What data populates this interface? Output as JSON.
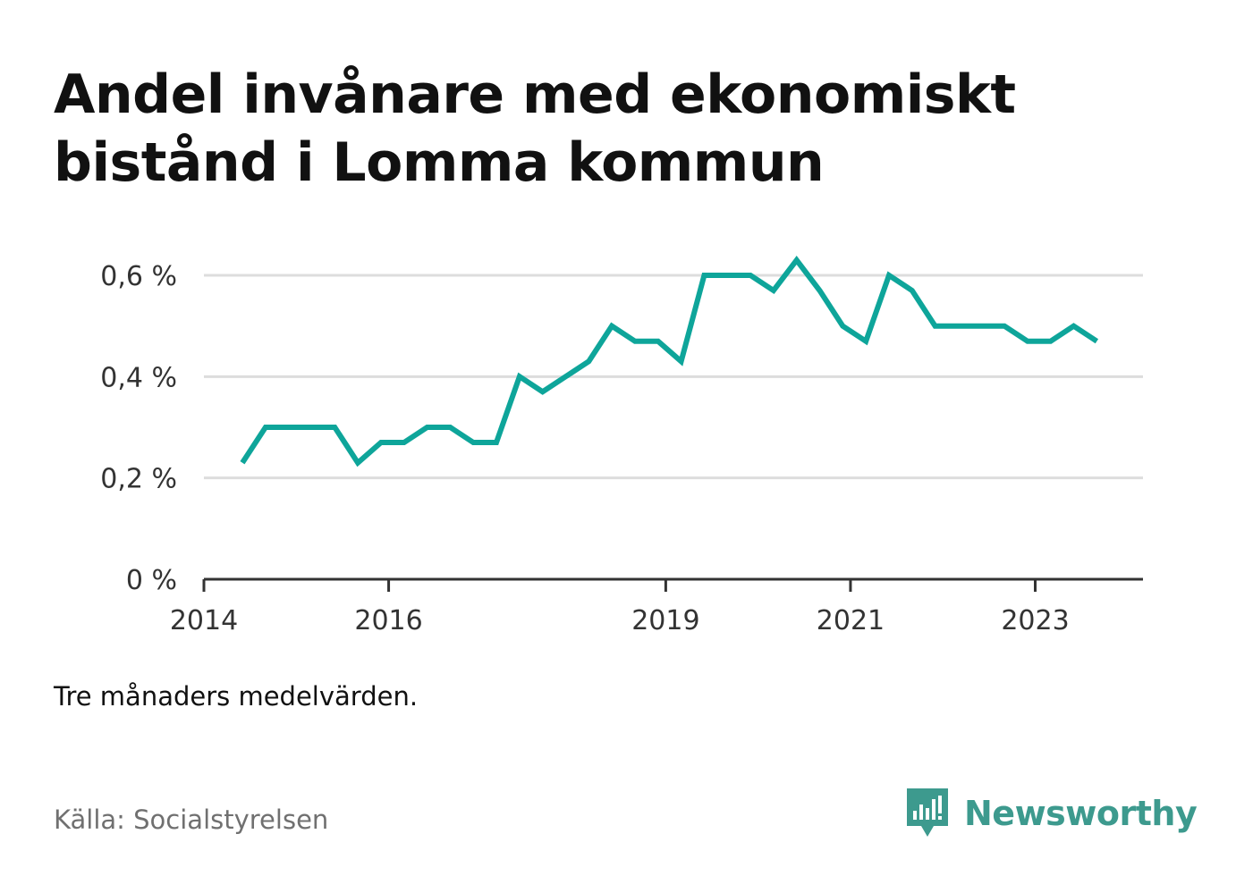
{
  "title": "Andel invånare med ekonomiskt bistånd i Lomma kommun",
  "note": "Tre månaders medelvärden.",
  "source": "Källa: Socialstyrelsen",
  "brand": {
    "name": "Newsworthy",
    "icon": "newsworthy-logo-icon",
    "color": "#3d9a8e"
  },
  "chart_data": {
    "type": "line",
    "series": [
      {
        "color": "#0ea59a",
        "points": [
          [
            "2014-06",
            0.23
          ],
          [
            "2014-09",
            0.3
          ],
          [
            "2014-12",
            0.3
          ],
          [
            "2015-03",
            0.3
          ],
          [
            "2015-06",
            0.3
          ],
          [
            "2015-09",
            0.23
          ],
          [
            "2015-12",
            0.27
          ],
          [
            "2016-03",
            0.27
          ],
          [
            "2016-06",
            0.3
          ],
          [
            "2016-09",
            0.3
          ],
          [
            "2016-12",
            0.27
          ],
          [
            "2017-03",
            0.27
          ],
          [
            "2017-06",
            0.4
          ],
          [
            "2017-09",
            0.37
          ],
          [
            "2017-12",
            0.4
          ],
          [
            "2018-03",
            0.43
          ],
          [
            "2018-06",
            0.5
          ],
          [
            "2018-09",
            0.47
          ],
          [
            "2018-12",
            0.47
          ],
          [
            "2019-03",
            0.43
          ],
          [
            "2019-06",
            0.6
          ],
          [
            "2019-09",
            0.6
          ],
          [
            "2019-12",
            0.6
          ],
          [
            "2020-03",
            0.57
          ],
          [
            "2020-06",
            0.63
          ],
          [
            "2020-09",
            0.57
          ],
          [
            "2020-12",
            0.5
          ],
          [
            "2021-03",
            0.47
          ],
          [
            "2021-06",
            0.6
          ],
          [
            "2021-09",
            0.57
          ],
          [
            "2021-12",
            0.5
          ],
          [
            "2022-03",
            0.5
          ],
          [
            "2022-06",
            0.5
          ],
          [
            "2022-09",
            0.5
          ],
          [
            "2022-12",
            0.47
          ],
          [
            "2023-03",
            0.47
          ],
          [
            "2023-06",
            0.5
          ],
          [
            "2023-09",
            0.47
          ]
        ]
      }
    ],
    "x_ticks": [
      "2014",
      "2016",
      "2019",
      "2021",
      "2023"
    ],
    "x_range": [
      "2014-01",
      "2024-03"
    ],
    "y_ticks": [
      0,
      0.2,
      0.4,
      0.6
    ],
    "y_tick_labels": [
      "0 %",
      "0,2 %",
      "0,4 %",
      "0,6 %"
    ],
    "ylim": [
      0,
      0.6
    ],
    "grid": true,
    "legend": "none",
    "colors": {
      "line": "#0ea59a",
      "grid": "#dddddd",
      "axis": "#333333",
      "tick_text": "#333333"
    }
  }
}
